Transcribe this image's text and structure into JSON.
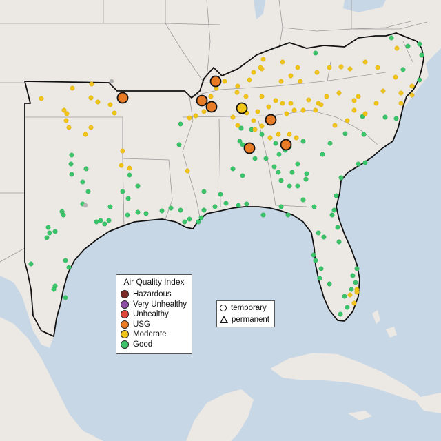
{
  "legend": {
    "title": "Air Quality Index",
    "categories": [
      {
        "label": "Hazardous",
        "color": "#7a2a26"
      },
      {
        "label": "Very Unhealthy",
        "color": "#8e4fa6"
      },
      {
        "label": "Unhealthy",
        "color": "#e0473a"
      },
      {
        "label": "USG",
        "color": "#e87b26"
      },
      {
        "label": "Moderate",
        "color": "#f0c419"
      },
      {
        "label": "Good",
        "color": "#3cc46a"
      }
    ]
  },
  "site_legend": {
    "temporary_label": "temporary",
    "permanent_label": "permanent"
  },
  "colors": {
    "water": "#c8d7e6",
    "land": "#ece8e4",
    "region_border": "#111111",
    "state_border": "#9a9a9a",
    "no_data": "#b4b4b4"
  }
}
